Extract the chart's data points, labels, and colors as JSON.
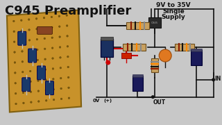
{
  "title": "C945 Preamplifier",
  "subtitle1": "9V to 35V",
  "subtitle2": "Single",
  "subtitle3": "Supply",
  "label_in": "IN",
  "label_out": "OUT",
  "label_0v": "0V",
  "label_plus": "(+)",
  "bg_color": "#c8c8c8",
  "pcb_color": "#c8922a",
  "title_color": "#111111",
  "wire_color": "#111111",
  "red_wire_color": "#cc0000",
  "cap_elec_color": "#1a3a6a",
  "orange_cap_color": "#e07820"
}
